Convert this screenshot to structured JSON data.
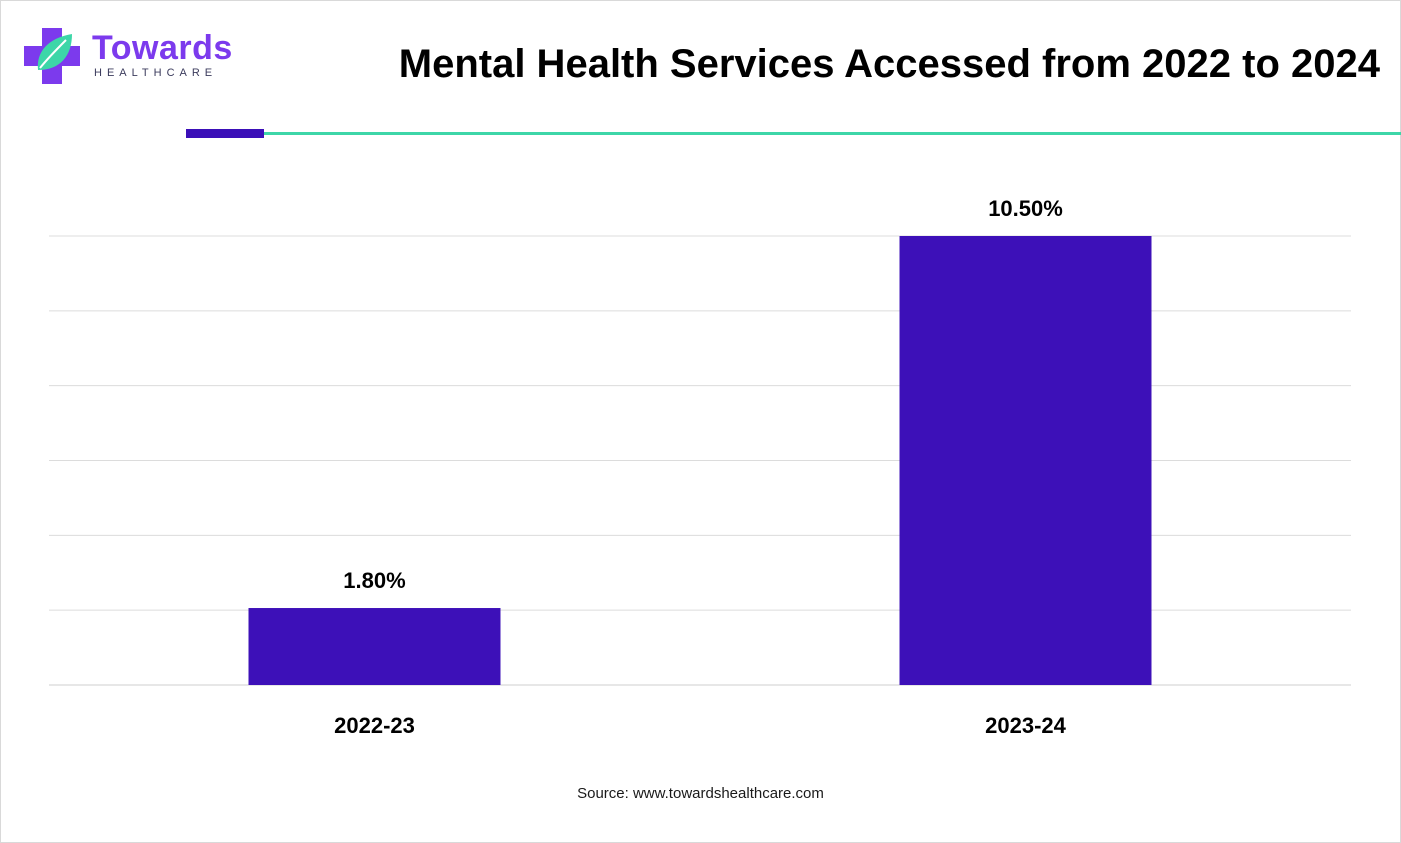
{
  "brand": {
    "name": "Towards",
    "tagline": "HEALTHCARE",
    "primary_color": "#7c3aed",
    "accent_color": "#3dd6a8"
  },
  "source": "Source: www.towardshealthcare.com",
  "chart_data": {
    "type": "bar",
    "title": "Mental Health Services Accessed from 2022 to 2024",
    "xlabel": "",
    "ylabel": "",
    "categories": [
      "2022-23",
      "2023-24"
    ],
    "values": [
      1.8,
      10.5
    ],
    "value_labels": [
      "1.80%",
      "10.50%"
    ],
    "ylim": [
      0,
      10.5
    ],
    "grid": true,
    "legend": "none",
    "bar_color": "#3d10b8"
  }
}
